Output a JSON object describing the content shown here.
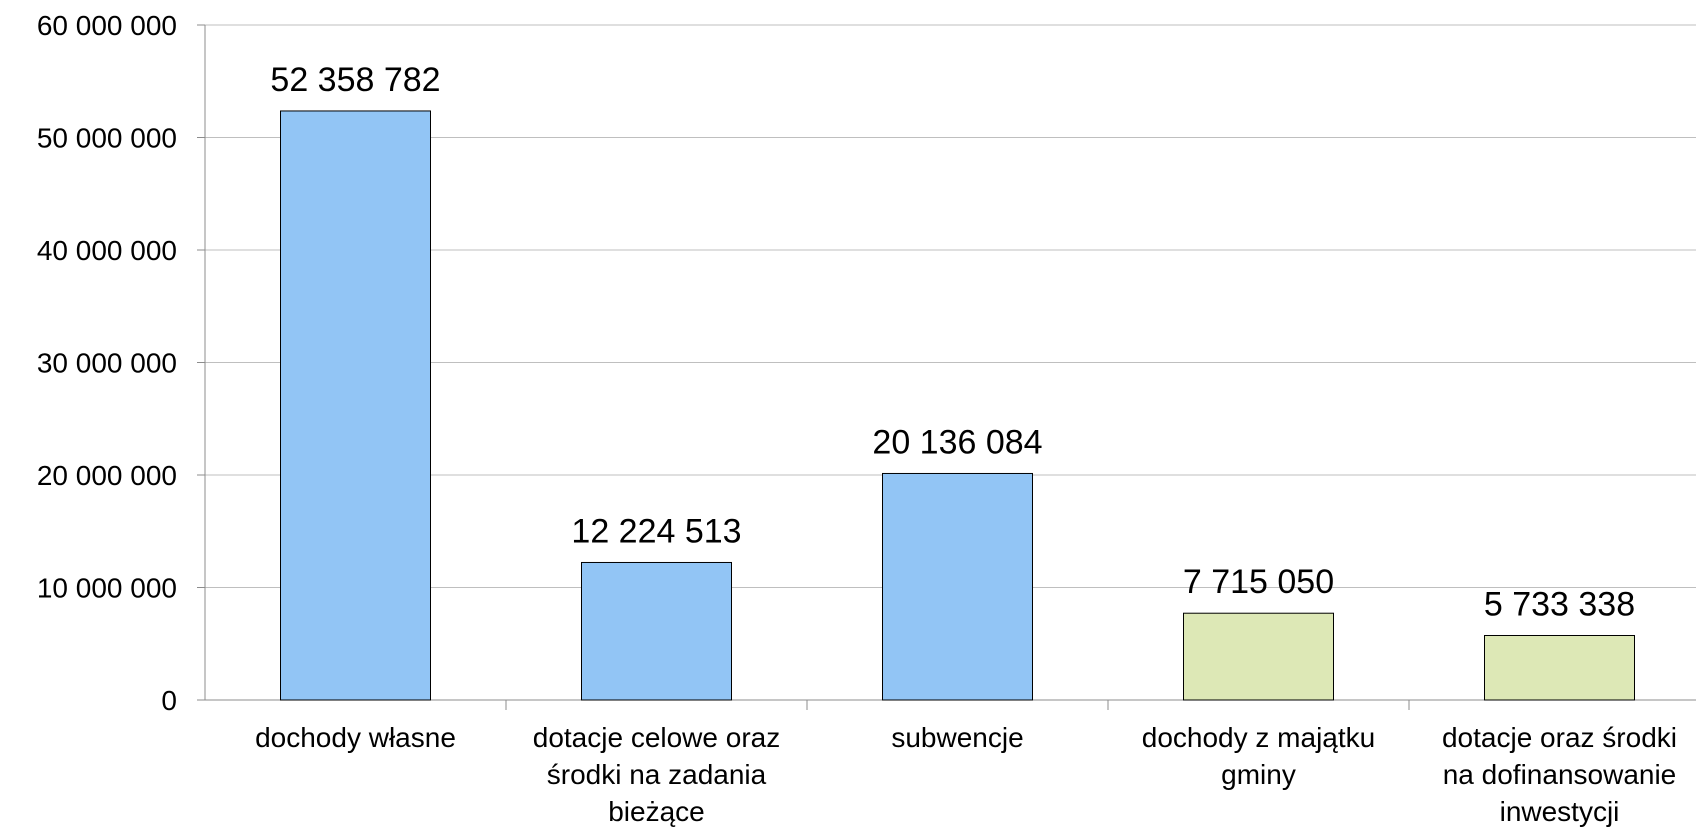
{
  "chart_data": {
    "type": "bar",
    "categories": [
      [
        "dochody własne"
      ],
      [
        "dotacje celowe oraz",
        "środki na zadania",
        "bieżące"
      ],
      [
        "subwencje"
      ],
      [
        "dochody z majątku",
        "gminy"
      ],
      [
        "dotacje oraz środki",
        "na dofinansowanie",
        "inwestycji"
      ]
    ],
    "values": [
      52358782,
      12224513,
      20136084,
      7715050,
      5733338
    ],
    "data_labels": [
      "52 358 782",
      "12 224 513",
      "20 136 084",
      "7 715 050",
      "5 733 338"
    ],
    "bar_colors": [
      "#92c5f5",
      "#92c5f5",
      "#92c5f5",
      "#dde8b6",
      "#dde8b6"
    ],
    "ylim": [
      0,
      60000000
    ],
    "yticks": [
      0,
      10000000,
      20000000,
      30000000,
      40000000,
      50000000,
      60000000
    ],
    "ytick_labels": [
      "0",
      "10 000 000",
      "20 000 000",
      "30 000 000",
      "40 000 000",
      "50 000 000",
      "60 000 000"
    ],
    "grid": true,
    "title": "",
    "xlabel": "",
    "ylabel": ""
  }
}
